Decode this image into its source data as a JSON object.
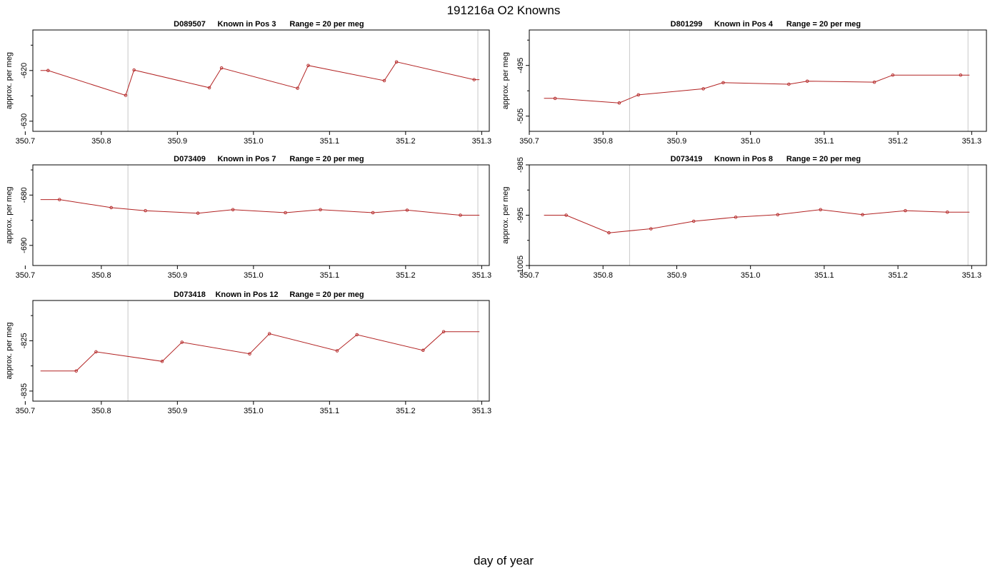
{
  "figure": {
    "title": "191216a   O2 Knowns",
    "xlabel": "day of year",
    "line_color": "#b22222",
    "marker_color": "#b22222",
    "vline_color": "#c8c8c8"
  },
  "chart_data": [
    {
      "type": "line",
      "title_parts": [
        "D089507",
        "Known in Pos 3",
        "Range = 20 per meg"
      ],
      "ylabel": "approx. per meg",
      "xlim": [
        350.71,
        351.31
      ],
      "ylim": [
        -632,
        -612
      ],
      "xticks": [
        350.7,
        350.8,
        350.9,
        351.0,
        351.1,
        351.2,
        351.3
      ],
      "xtick_labels": [
        "350.7",
        "350.8",
        "350.9",
        "351.0",
        "351.1",
        "351.2",
        "351.3"
      ],
      "yticks": [
        -620,
        -630
      ],
      "ytick_labels": [
        "-620",
        "-630"
      ],
      "yminor": [
        -615,
        -625
      ],
      "vlines": [
        350.835,
        351.295
      ],
      "line": {
        "x": [
          350.72,
          350.73,
          350.832,
          350.843,
          350.942,
          350.958,
          351.058,
          351.072,
          351.172,
          351.188,
          351.29,
          351.297
        ],
        "y": [
          -620.0,
          -620.0,
          -624.9,
          -619.9,
          -623.4,
          -619.5,
          -623.5,
          -619.0,
          -622.0,
          -618.3,
          -621.8,
          -621.8
        ]
      },
      "markers": {
        "x": [
          350.73,
          350.832,
          350.843,
          350.942,
          350.958,
          351.058,
          351.072,
          351.172,
          351.188,
          351.29
        ],
        "y": [
          -620.0,
          -624.9,
          -619.9,
          -623.4,
          -619.5,
          -623.5,
          -619.0,
          -622.0,
          -618.3,
          -621.8
        ]
      }
    },
    {
      "type": "line",
      "title_parts": [
        "D801299",
        "Known in Pos 4",
        "Range = 20 per meg"
      ],
      "ylabel": "approx. per meg",
      "xlim": [
        350.7,
        351.32
      ],
      "ylim": [
        -508,
        -488
      ],
      "xticks": [
        350.7,
        350.8,
        350.9,
        351.0,
        351.1,
        351.2,
        351.3
      ],
      "xtick_labels": [
        "350.7",
        "350.8",
        "350.9",
        "351.0",
        "351.1",
        "351.2",
        "351.3"
      ],
      "yticks": [
        -495,
        -505
      ],
      "ytick_labels": [
        "-495",
        "-505"
      ],
      "yminor": [
        -490,
        -500
      ],
      "vlines": [
        350.836,
        351.295
      ],
      "line": {
        "x": [
          350.72,
          350.735,
          350.822,
          350.848,
          350.936,
          350.963,
          351.052,
          351.077,
          351.168,
          351.193,
          351.285,
          351.297
        ],
        "y": [
          -501.5,
          -501.5,
          -502.4,
          -500.8,
          -499.6,
          -498.4,
          -498.7,
          -498.1,
          -498.3,
          -496.9,
          -496.9,
          -496.9
        ]
      },
      "markers": {
        "x": [
          350.735,
          350.822,
          350.848,
          350.936,
          350.963,
          351.052,
          351.077,
          351.168,
          351.193,
          351.285
        ],
        "y": [
          -501.5,
          -502.4,
          -500.8,
          -499.6,
          -498.4,
          -498.7,
          -498.1,
          -498.3,
          -496.9,
          -496.9
        ]
      }
    },
    {
      "type": "line",
      "title_parts": [
        "D073409",
        "Known in Pos 7",
        "Range = 20 per meg"
      ],
      "ylabel": "approx. per meg",
      "xlim": [
        350.71,
        351.31
      ],
      "ylim": [
        -694,
        -674
      ],
      "xticks": [
        350.7,
        350.8,
        350.9,
        351.0,
        351.1,
        351.2,
        351.3
      ],
      "xtick_labels": [
        "350.7",
        "350.8",
        "350.9",
        "351.0",
        "351.1",
        "351.2",
        "351.3"
      ],
      "yticks": [
        -680,
        -690
      ],
      "ytick_labels": [
        "-680",
        "-690"
      ],
      "yminor": [
        -675,
        -685
      ],
      "vlines": [
        350.835,
        351.295
      ],
      "line": {
        "x": [
          350.72,
          350.745,
          350.813,
          350.858,
          350.927,
          350.973,
          351.042,
          351.088,
          351.157,
          351.202,
          351.272,
          351.297
        ],
        "y": [
          -680.9,
          -680.9,
          -682.5,
          -683.1,
          -683.6,
          -682.9,
          -683.5,
          -682.9,
          -683.5,
          -683.0,
          -684.0,
          -684.0
        ]
      },
      "markers": {
        "x": [
          350.745,
          350.813,
          350.858,
          350.927,
          350.973,
          351.042,
          351.088,
          351.157,
          351.202,
          351.272
        ],
        "y": [
          -680.9,
          -682.5,
          -683.1,
          -683.6,
          -682.9,
          -683.5,
          -682.9,
          -683.5,
          -683.0,
          -684.0
        ]
      }
    },
    {
      "type": "line",
      "title_parts": [
        "D073419",
        "Known in Pos 8",
        "Range = 20 per meg"
      ],
      "ylabel": "approx. per meg",
      "xlim": [
        350.7,
        351.32
      ],
      "ylim": [
        -1005,
        -985
      ],
      "xticks": [
        350.7,
        350.8,
        350.9,
        351.0,
        351.1,
        351.2,
        351.3
      ],
      "xtick_labels": [
        "350.7",
        "350.8",
        "350.9",
        "351.0",
        "351.1",
        "351.2",
        "351.3"
      ],
      "yticks": [
        -985,
        -995,
        -1005
      ],
      "ytick_labels": [
        "-985",
        "-995",
        "-1005"
      ],
      "yminor": [
        -990,
        -1000
      ],
      "vlines": [
        350.836,
        351.295
      ],
      "line": {
        "x": [
          350.72,
          350.75,
          350.808,
          350.865,
          350.923,
          350.98,
          351.037,
          351.095,
          351.152,
          351.21,
          351.267,
          351.297
        ],
        "y": [
          -995.0,
          -995.0,
          -998.5,
          -997.7,
          -996.2,
          -995.4,
          -994.9,
          -993.9,
          -994.9,
          -994.1,
          -994.4,
          -994.4
        ]
      },
      "markers": {
        "x": [
          350.75,
          350.808,
          350.865,
          350.923,
          350.98,
          351.037,
          351.095,
          351.152,
          351.21,
          351.267
        ],
        "y": [
          -995.0,
          -998.5,
          -997.7,
          -996.2,
          -995.4,
          -994.9,
          -993.9,
          -994.9,
          -994.1,
          -994.4
        ]
      }
    },
    {
      "type": "line",
      "title_parts": [
        "D073418",
        "Known in Pos 12",
        "Range = 20 per meg"
      ],
      "ylabel": "approx. per meg",
      "xlim": [
        350.71,
        351.31
      ],
      "ylim": [
        -837,
        -817
      ],
      "xticks": [
        350.7,
        350.8,
        350.9,
        351.0,
        351.1,
        351.2,
        351.3
      ],
      "xtick_labels": [
        "350.7",
        "350.8",
        "350.9",
        "351.0",
        "351.1",
        "351.2",
        "351.3"
      ],
      "yticks": [
        -825,
        -835
      ],
      "ytick_labels": [
        "-825",
        "-835"
      ],
      "yminor": [
        -820,
        -830
      ],
      "vlines": [
        350.835,
        351.295
      ],
      "line": {
        "x": [
          350.72,
          350.767,
          350.793,
          350.88,
          350.906,
          350.995,
          351.021,
          351.11,
          351.136,
          351.223,
          351.25,
          351.297
        ],
        "y": [
          -831.0,
          -831.0,
          -827.2,
          -829.1,
          -825.3,
          -827.6,
          -823.6,
          -827.0,
          -823.8,
          -826.9,
          -823.2,
          -823.2
        ]
      },
      "markers": {
        "x": [
          350.767,
          350.793,
          350.88,
          350.906,
          350.995,
          351.021,
          351.11,
          351.136,
          351.223,
          351.25
        ],
        "y": [
          -831.0,
          -827.2,
          -829.1,
          -825.3,
          -827.6,
          -823.6,
          -827.0,
          -823.8,
          -826.9,
          -823.2
        ]
      }
    }
  ]
}
